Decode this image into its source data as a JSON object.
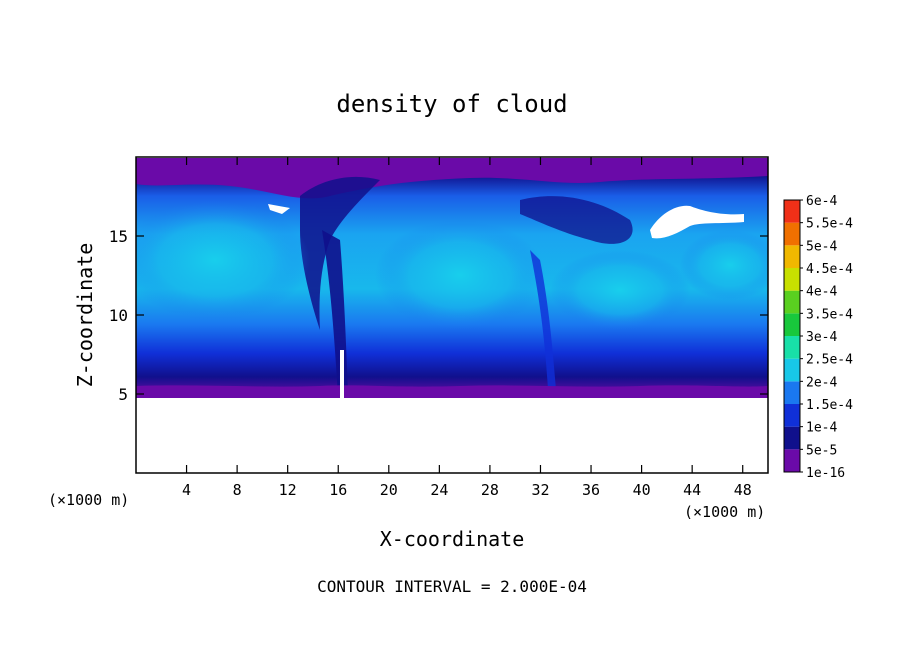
{
  "chart_data": {
    "type": "heatmap",
    "title": "density of cloud",
    "xlabel": "X-coordinate",
    "ylabel": "Z-coordinate",
    "x_unit_left": "(×1000 m)",
    "x_unit_right": "(×1000 m)",
    "footer": "CONTOUR INTERVAL = 2.000E-04",
    "xlim": [
      0,
      50
    ],
    "ylim": [
      0,
      20
    ],
    "x_ticks": [
      4,
      8,
      12,
      16,
      20,
      24,
      28,
      32,
      36,
      40,
      44,
      48
    ],
    "y_ticks": [
      5,
      10,
      15
    ],
    "colorbar": {
      "levels": [
        "1e-16",
        "5e-5",
        "1e-4",
        "1.5e-4",
        "2e-4",
        "2.5e-4",
        "3e-4",
        "3.5e-4",
        "4e-4",
        "4.5e-4",
        "5e-4",
        "5.5e-4",
        "6e-4"
      ],
      "colors": [
        "#6a0aa8",
        "#10108c",
        "#1030d8",
        "#1a78f0",
        "#18c8e8",
        "#18e0a8",
        "#18c83c",
        "#5ad020",
        "#c8e000",
        "#f0b800",
        "#f07000",
        "#f03018",
        "#f08888"
      ]
    },
    "field": {
      "cloud_base_z": 5,
      "cloud_top_z": 19.6,
      "description_regions": [
        {
          "x": [
            0,
            15
          ],
          "z": [
            8,
            16
          ],
          "level": "2e-4"
        },
        {
          "x": [
            17,
            32
          ],
          "z": [
            8,
            15
          ],
          "level": "2e-4"
        },
        {
          "x": [
            33,
            50
          ],
          "z": [
            8,
            14
          ],
          "level": "1.5e-4"
        }
      ],
      "clear_zone_below": 5
    }
  }
}
